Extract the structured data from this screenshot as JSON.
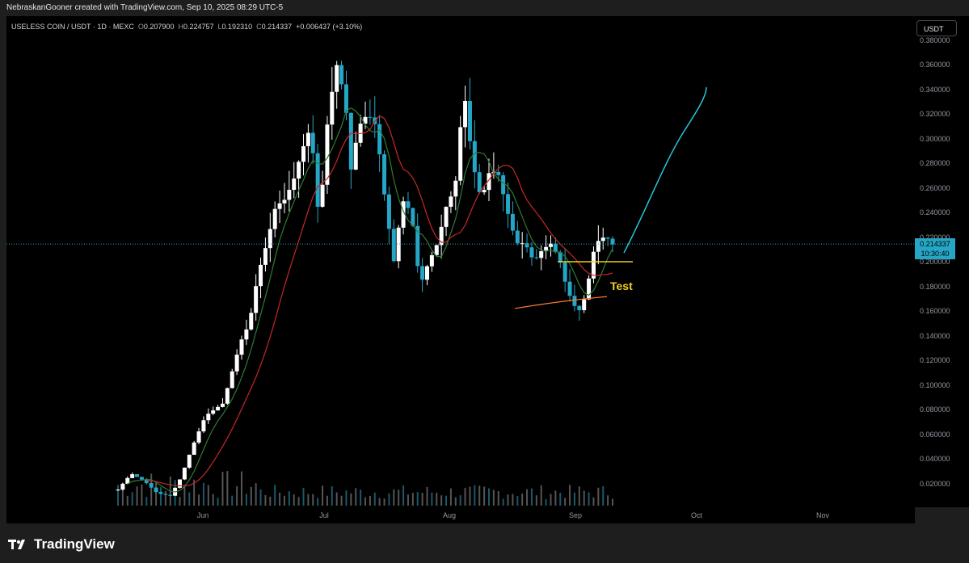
{
  "attribution": "NebraskanGooner created with TradingView.com, Sep 10, 2025 08:29 UTC-5",
  "legend": {
    "symbol": "USELESS COIN / USDT · 1D · MEXC",
    "open_key": "O",
    "open": "0.207900",
    "high_key": "H",
    "high": "0.224757",
    "low_key": "L",
    "low": "0.192310",
    "close_key": "C",
    "close": "0.214337",
    "change": "+0.006437 (+3.10%)"
  },
  "currency_button": "USDT",
  "price_axis": {
    "labels": [
      "0.380000",
      "0.360000",
      "0.340000",
      "0.320000",
      "0.300000",
      "0.280000",
      "0.260000",
      "0.240000",
      "0.220000",
      "0.200000",
      "0.180000",
      "0.160000",
      "0.140000",
      "0.120000",
      "0.100000",
      "0.080000",
      "0.060000",
      "0.040000",
      "0.020000"
    ],
    "values": [
      0.38,
      0.36,
      0.34,
      0.32,
      0.3,
      0.28,
      0.26,
      0.24,
      0.22,
      0.2,
      0.18,
      0.16,
      0.14,
      0.12,
      0.1,
      0.08,
      0.06,
      0.04,
      0.02
    ]
  },
  "current_price": {
    "value": "0.214337",
    "countdown": "10:30:40",
    "price": 0.214337
  },
  "time_axis": [
    "Jun",
    "Jul",
    "Aug",
    "Sep",
    "Oct",
    "Nov"
  ],
  "annotation": {
    "text": "Test",
    "level": 0.2
  },
  "colors": {
    "bull": "#ffffff",
    "bear": "#26a6c6",
    "ma_fast": "#2e7d32",
    "ma_slow": "#c62828",
    "ma_long": "#ff7b2e",
    "projection": "#26c6da",
    "test_line": "#f0d020"
  },
  "footer": {
    "brand": "TradingView"
  }
}
